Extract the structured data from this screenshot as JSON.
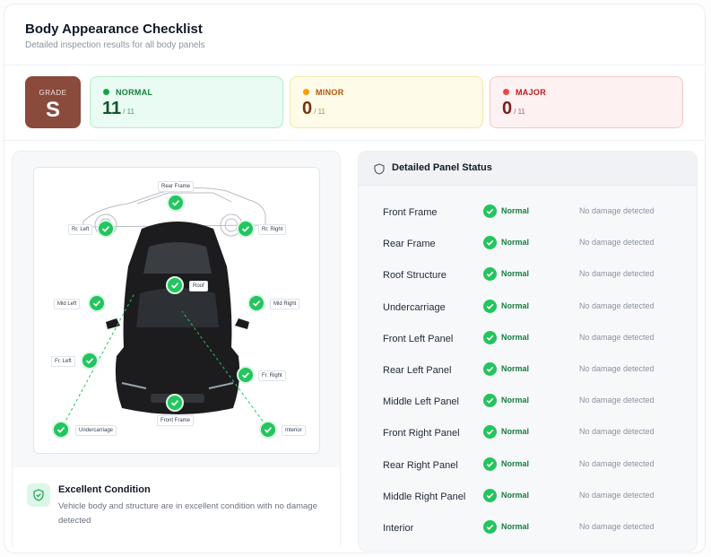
{
  "header": {
    "title": "Body Appearance Checklist",
    "subtitle": "Detailed inspection results for all body panels"
  },
  "grade": {
    "label": "GRADE",
    "value": "S"
  },
  "summary": {
    "normal": {
      "label": "NORMAL",
      "count": "11",
      "total": "/ 11",
      "color": "#16a34a"
    },
    "minor": {
      "label": "MINOR",
      "count": "0",
      "total": "/ 11",
      "color": "#f59e0b"
    },
    "major": {
      "label": "MAJOR",
      "count": "0",
      "total": "/ 11",
      "color": "#ef4444"
    }
  },
  "diagram": {
    "labels": {
      "rear_frame": "Rear Frame",
      "rr_left": "Rr. Left",
      "rr_right": "Rr. Right",
      "roof": "Roof",
      "mid_left": "Mid Left",
      "mid_right": "Mid Right",
      "fr_left": "Fr. Left",
      "fr_right": "Fr. Right",
      "front_frame": "Front Frame",
      "undercarriage": "Undercarriage",
      "interior": "Interior"
    }
  },
  "condition": {
    "title": "Excellent Condition",
    "text": "Vehicle body and structure are in excellent condition with no damage detected"
  },
  "panel_status": {
    "title": "Detailed Panel Status",
    "rows": [
      {
        "name": "Front Frame",
        "status": "Normal",
        "note": "No damage detected"
      },
      {
        "name": "Rear Frame",
        "status": "Normal",
        "note": "No damage detected"
      },
      {
        "name": "Roof Structure",
        "status": "Normal",
        "note": "No damage detected"
      },
      {
        "name": "Undercarriage",
        "status": "Normal",
        "note": "No damage detected"
      },
      {
        "name": "Front Left Panel",
        "status": "Normal",
        "note": "No damage detected"
      },
      {
        "name": "Rear Left Panel",
        "status": "Normal",
        "note": "No damage detected"
      },
      {
        "name": "Middle Left Panel",
        "status": "Normal",
        "note": "No damage detected"
      },
      {
        "name": "Front Right Panel",
        "status": "Normal",
        "note": "No damage detected"
      },
      {
        "name": "Rear Right Panel",
        "status": "Normal",
        "note": "No damage detected"
      },
      {
        "name": "Middle Right Panel",
        "status": "Normal",
        "note": "No damage detected"
      },
      {
        "name": "Interior",
        "status": "Normal",
        "note": "No damage detected"
      }
    ]
  }
}
